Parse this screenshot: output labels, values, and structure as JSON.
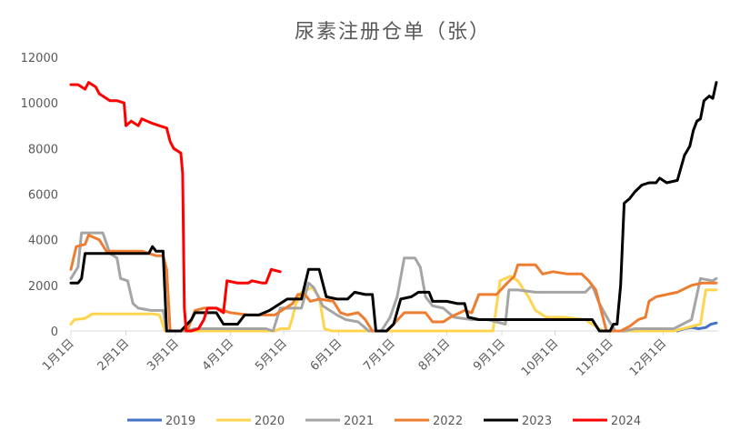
{
  "chart_data": {
    "type": "line",
    "title": "尿素注册仓单（张）",
    "xlabel": "",
    "ylabel": "",
    "ylim": [
      0,
      12000
    ],
    "yticks": [
      0,
      2000,
      4000,
      6000,
      8000,
      10000,
      12000
    ],
    "xlim": [
      0,
      365
    ],
    "xticks": [
      {
        "label": "1月1日",
        "day": 0
      },
      {
        "label": "2月1日",
        "day": 31
      },
      {
        "label": "3月1日",
        "day": 59
      },
      {
        "label": "4月1日",
        "day": 90
      },
      {
        "label": "5月1日",
        "day": 120
      },
      {
        "label": "6月1日",
        "day": 151
      },
      {
        "label": "7月1日",
        "day": 181
      },
      {
        "label": "8月1日",
        "day": 212
      },
      {
        "label": "9月1日",
        "day": 243
      },
      {
        "label": "10月1日",
        "day": 273
      },
      {
        "label": "11月1日",
        "day": 304
      },
      {
        "label": "12月1日",
        "day": 334
      }
    ],
    "grid": false,
    "legend_position": "bottom",
    "series": [
      {
        "name": "2019",
        "color": "#4472C4",
        "points": [
          [
            342,
            0
          ],
          [
            346,
            100
          ],
          [
            350,
            150
          ],
          [
            354,
            100
          ],
          [
            358,
            150
          ],
          [
            361,
            300
          ],
          [
            364,
            350
          ]
        ]
      },
      {
        "name": "2020",
        "color": "#FFD54F",
        "points": [
          [
            0,
            300
          ],
          [
            2,
            500
          ],
          [
            8,
            550
          ],
          [
            12,
            750
          ],
          [
            18,
            750
          ],
          [
            24,
            750
          ],
          [
            40,
            750
          ],
          [
            46,
            750
          ],
          [
            50,
            700
          ],
          [
            53,
            0
          ],
          [
            64,
            0
          ],
          [
            92,
            0
          ],
          [
            115,
            0
          ],
          [
            118,
            100
          ],
          [
            123,
            100
          ],
          [
            125,
            600
          ],
          [
            127,
            1200
          ],
          [
            130,
            1700
          ],
          [
            136,
            1900
          ],
          [
            140,
            1500
          ],
          [
            143,
            100
          ],
          [
            147,
            0
          ],
          [
            200,
            0
          ],
          [
            238,
            0
          ],
          [
            242,
            2200
          ],
          [
            248,
            2400
          ],
          [
            252,
            2200
          ],
          [
            258,
            1500
          ],
          [
            262,
            900
          ],
          [
            268,
            600
          ],
          [
            278,
            600
          ],
          [
            290,
            500
          ],
          [
            300,
            0
          ],
          [
            330,
            0
          ],
          [
            340,
            0
          ],
          [
            355,
            300
          ],
          [
            358,
            1800
          ],
          [
            364,
            1800
          ]
        ]
      },
      {
        "name": "2021",
        "color": "#A5A5A5",
        "points": [
          [
            0,
            2300
          ],
          [
            4,
            2800
          ],
          [
            6,
            4300
          ],
          [
            12,
            4300
          ],
          [
            18,
            4300
          ],
          [
            22,
            3400
          ],
          [
            26,
            3200
          ],
          [
            28,
            2300
          ],
          [
            32,
            2200
          ],
          [
            35,
            1200
          ],
          [
            38,
            1000
          ],
          [
            45,
            900
          ],
          [
            52,
            900
          ],
          [
            54,
            0
          ],
          [
            65,
            0
          ],
          [
            70,
            100
          ],
          [
            110,
            100
          ],
          [
            114,
            0
          ],
          [
            118,
            1000
          ],
          [
            130,
            1000
          ],
          [
            134,
            2100
          ],
          [
            137,
            1900
          ],
          [
            142,
            1100
          ],
          [
            146,
            900
          ],
          [
            150,
            700
          ],
          [
            155,
            500
          ],
          [
            162,
            400
          ],
          [
            168,
            0
          ],
          [
            175,
            0
          ],
          [
            180,
            600
          ],
          [
            184,
            1500
          ],
          [
            188,
            3200
          ],
          [
            194,
            3200
          ],
          [
            197,
            2800
          ],
          [
            200,
            1500
          ],
          [
            204,
            1100
          ],
          [
            210,
            1000
          ],
          [
            216,
            600
          ],
          [
            226,
            500
          ],
          [
            235,
            500
          ],
          [
            245,
            300
          ],
          [
            247,
            1800
          ],
          [
            252,
            1800
          ],
          [
            262,
            1700
          ],
          [
            270,
            1700
          ],
          [
            280,
            1700
          ],
          [
            290,
            1700
          ],
          [
            294,
            2000
          ],
          [
            298,
            1200
          ],
          [
            303,
            500
          ],
          [
            307,
            0
          ],
          [
            312,
            0
          ],
          [
            318,
            100
          ],
          [
            340,
            100
          ],
          [
            350,
            500
          ],
          [
            355,
            2300
          ],
          [
            362,
            2200
          ],
          [
            364,
            2300
          ]
        ]
      },
      {
        "name": "2022",
        "color": "#ED7D31",
        "points": [
          [
            0,
            2700
          ],
          [
            3,
            3700
          ],
          [
            8,
            3800
          ],
          [
            10,
            4200
          ],
          [
            16,
            4000
          ],
          [
            20,
            3500
          ],
          [
            30,
            3500
          ],
          [
            40,
            3500
          ],
          [
            48,
            3300
          ],
          [
            52,
            3300
          ],
          [
            54,
            2700
          ],
          [
            56,
            0
          ],
          [
            62,
            0
          ],
          [
            66,
            100
          ],
          [
            70,
            900
          ],
          [
            75,
            1000
          ],
          [
            82,
            1000
          ],
          [
            90,
            800
          ],
          [
            100,
            700
          ],
          [
            110,
            700
          ],
          [
            115,
            700
          ],
          [
            119,
            900
          ],
          [
            125,
            1200
          ],
          [
            128,
            1600
          ],
          [
            132,
            1600
          ],
          [
            135,
            1300
          ],
          [
            140,
            1400
          ],
          [
            148,
            1300
          ],
          [
            152,
            800
          ],
          [
            156,
            700
          ],
          [
            162,
            800
          ],
          [
            166,
            500
          ],
          [
            170,
            0
          ],
          [
            178,
            0
          ],
          [
            182,
            300
          ],
          [
            188,
            800
          ],
          [
            193,
            800
          ],
          [
            200,
            800
          ],
          [
            204,
            400
          ],
          [
            210,
            400
          ],
          [
            214,
            600
          ],
          [
            222,
            900
          ],
          [
            226,
            800
          ],
          [
            230,
            1600
          ],
          [
            236,
            1600
          ],
          [
            240,
            1600
          ],
          [
            246,
            2100
          ],
          [
            250,
            2400
          ],
          [
            252,
            2900
          ],
          [
            262,
            2900
          ],
          [
            266,
            2500
          ],
          [
            272,
            2600
          ],
          [
            280,
            2500
          ],
          [
            288,
            2500
          ],
          [
            292,
            2200
          ],
          [
            296,
            1800
          ],
          [
            298,
            1200
          ],
          [
            302,
            0
          ],
          [
            310,
            0
          ],
          [
            315,
            200
          ],
          [
            320,
            500
          ],
          [
            324,
            600
          ],
          [
            326,
            1300
          ],
          [
            330,
            1500
          ],
          [
            336,
            1600
          ],
          [
            342,
            1700
          ],
          [
            350,
            2000
          ],
          [
            356,
            2100
          ],
          [
            362,
            2100
          ],
          [
            364,
            2100
          ]
        ]
      },
      {
        "name": "2023",
        "color": "#000000",
        "points": [
          [
            0,
            2100
          ],
          [
            4,
            2100
          ],
          [
            6,
            2300
          ],
          [
            8,
            3400
          ],
          [
            16,
            3400
          ],
          [
            24,
            3400
          ],
          [
            30,
            3400
          ],
          [
            40,
            3400
          ],
          [
            44,
            3400
          ],
          [
            46,
            3700
          ],
          [
            48,
            3500
          ],
          [
            52,
            3500
          ],
          [
            54,
            0
          ],
          [
            62,
            0
          ],
          [
            68,
            500
          ],
          [
            70,
            800
          ],
          [
            74,
            800
          ],
          [
            82,
            800
          ],
          [
            86,
            300
          ],
          [
            94,
            300
          ],
          [
            98,
            700
          ],
          [
            106,
            700
          ],
          [
            112,
            900
          ],
          [
            116,
            1100
          ],
          [
            122,
            1400
          ],
          [
            130,
            1400
          ],
          [
            134,
            2700
          ],
          [
            140,
            2700
          ],
          [
            144,
            1500
          ],
          [
            150,
            1400
          ],
          [
            156,
            1400
          ],
          [
            160,
            1700
          ],
          [
            166,
            1600
          ],
          [
            170,
            1600
          ],
          [
            172,
            0
          ],
          [
            178,
            0
          ],
          [
            182,
            300
          ],
          [
            186,
            1400
          ],
          [
            192,
            1500
          ],
          [
            196,
            1700
          ],
          [
            202,
            1700
          ],
          [
            204,
            1300
          ],
          [
            212,
            1300
          ],
          [
            218,
            1200
          ],
          [
            222,
            1200
          ],
          [
            224,
            600
          ],
          [
            230,
            500
          ],
          [
            240,
            500
          ],
          [
            246,
            500
          ],
          [
            250,
            500
          ],
          [
            256,
            500
          ],
          [
            262,
            500
          ],
          [
            268,
            500
          ],
          [
            272,
            500
          ],
          [
            280,
            500
          ],
          [
            288,
            500
          ],
          [
            294,
            500
          ],
          [
            298,
            0
          ],
          [
            304,
            0
          ],
          [
            306,
            300
          ],
          [
            308,
            300
          ],
          [
            310,
            2000
          ],
          [
            312,
            5600
          ],
          [
            315,
            5800
          ],
          [
            318,
            6100
          ],
          [
            322,
            6400
          ],
          [
            326,
            6500
          ],
          [
            330,
            6500
          ],
          [
            332,
            6700
          ],
          [
            336,
            6500
          ],
          [
            342,
            6600
          ],
          [
            346,
            7700
          ],
          [
            349,
            8100
          ],
          [
            351,
            8800
          ],
          [
            353,
            9200
          ],
          [
            355,
            9300
          ],
          [
            357,
            10100
          ],
          [
            360,
            10300
          ],
          [
            362,
            10200
          ],
          [
            364,
            10900
          ]
        ]
      },
      {
        "name": "2024",
        "color": "#FF0000",
        "points": [
          [
            0,
            10800
          ],
          [
            4,
            10800
          ],
          [
            8,
            10600
          ],
          [
            10,
            10900
          ],
          [
            14,
            10700
          ],
          [
            16,
            10400
          ],
          [
            18,
            10300
          ],
          [
            22,
            10100
          ],
          [
            26,
            10100
          ],
          [
            30,
            10000
          ],
          [
            31,
            9000
          ],
          [
            34,
            9200
          ],
          [
            38,
            9000
          ],
          [
            40,
            9300
          ],
          [
            46,
            9100
          ],
          [
            50,
            9000
          ],
          [
            54,
            8900
          ],
          [
            56,
            8300
          ],
          [
            58,
            8000
          ],
          [
            62,
            7800
          ],
          [
            63,
            6900
          ],
          [
            64,
            1000
          ],
          [
            65,
            0
          ],
          [
            68,
            0
          ],
          [
            72,
            100
          ],
          [
            75,
            500
          ],
          [
            77,
            1000
          ],
          [
            82,
            1000
          ],
          [
            86,
            800
          ],
          [
            88,
            2200
          ],
          [
            94,
            2100
          ],
          [
            100,
            2100
          ],
          [
            102,
            2200
          ],
          [
            108,
            2100
          ],
          [
            110,
            2100
          ],
          [
            113,
            2700
          ],
          [
            118,
            2600
          ]
        ]
      }
    ]
  },
  "legend": [
    {
      "label": "2019",
      "color": "#4472C4"
    },
    {
      "label": "2020",
      "color": "#FFD54F"
    },
    {
      "label": "2021",
      "color": "#A5A5A5"
    },
    {
      "label": "2022",
      "color": "#ED7D31"
    },
    {
      "label": "2023",
      "color": "#000000"
    },
    {
      "label": "2024",
      "color": "#FF0000"
    }
  ]
}
